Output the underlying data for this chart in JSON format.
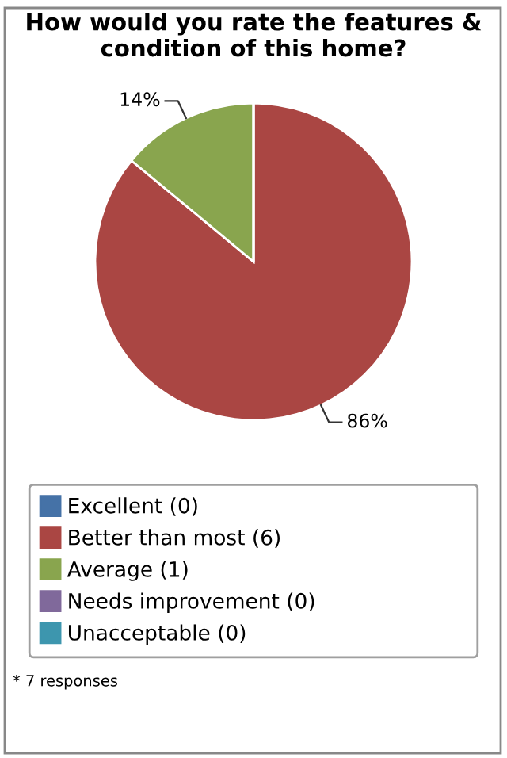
{
  "chart_data": {
    "type": "pie",
    "title": "How would you rate the features & condition of this home?",
    "categories": [
      "Excellent (0)",
      "Better than most (6)",
      "Average (1)",
      "Needs improvement (0)",
      "Unacceptable (0)"
    ],
    "values": [
      0,
      86,
      14,
      0,
      0
    ],
    "colors": [
      "#4572a7",
      "#aa4643",
      "#89a54e",
      "#80699b",
      "#3d96ae"
    ],
    "value_labels": [
      null,
      "86%",
      "14%",
      null,
      null
    ],
    "legend": "bottom",
    "annotations": [
      "* 7 responses"
    ]
  }
}
